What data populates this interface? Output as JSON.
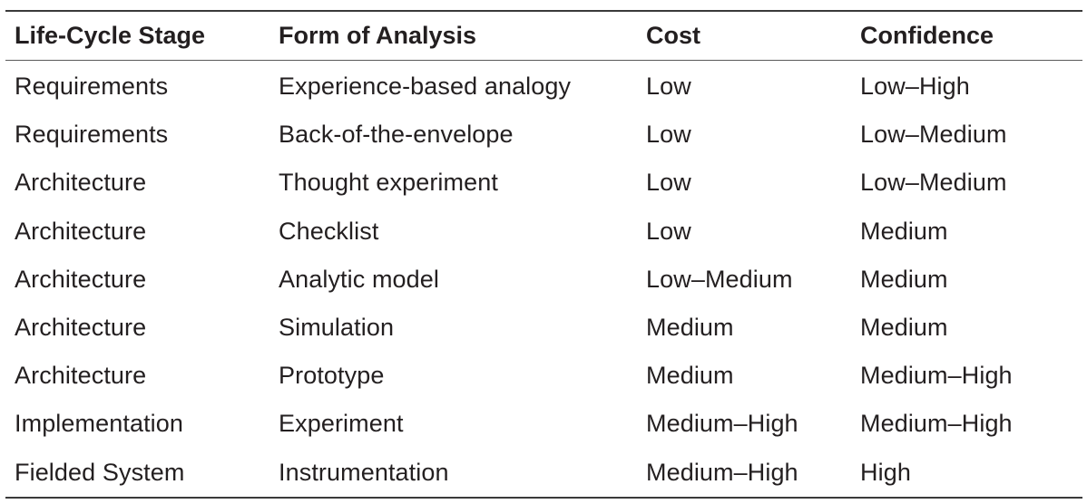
{
  "table": {
    "headers": [
      "Life-Cycle Stage",
      "Form of Analysis",
      "Cost",
      "Confidence"
    ],
    "rows": [
      [
        "Requirements",
        "Experience-based analogy",
        "Low",
        "Low–High"
      ],
      [
        "Requirements",
        "Back-of-the-envelope",
        "Low",
        "Low–Medium"
      ],
      [
        "Architecture",
        "Thought experiment",
        "Low",
        "Low–Medium"
      ],
      [
        "Architecture",
        "Checklist",
        "Low",
        "Medium"
      ],
      [
        "Architecture",
        "Analytic model",
        "Low–Medium",
        "Medium"
      ],
      [
        "Architecture",
        "Simulation",
        "Medium",
        "Medium"
      ],
      [
        "Architecture",
        "Prototype",
        "Medium",
        "Medium–High"
      ],
      [
        "Implementation",
        "Experiment",
        "Medium–High",
        "Medium–High"
      ],
      [
        "Fielded System",
        "Instrumentation",
        "Medium–High",
        "High"
      ]
    ]
  }
}
